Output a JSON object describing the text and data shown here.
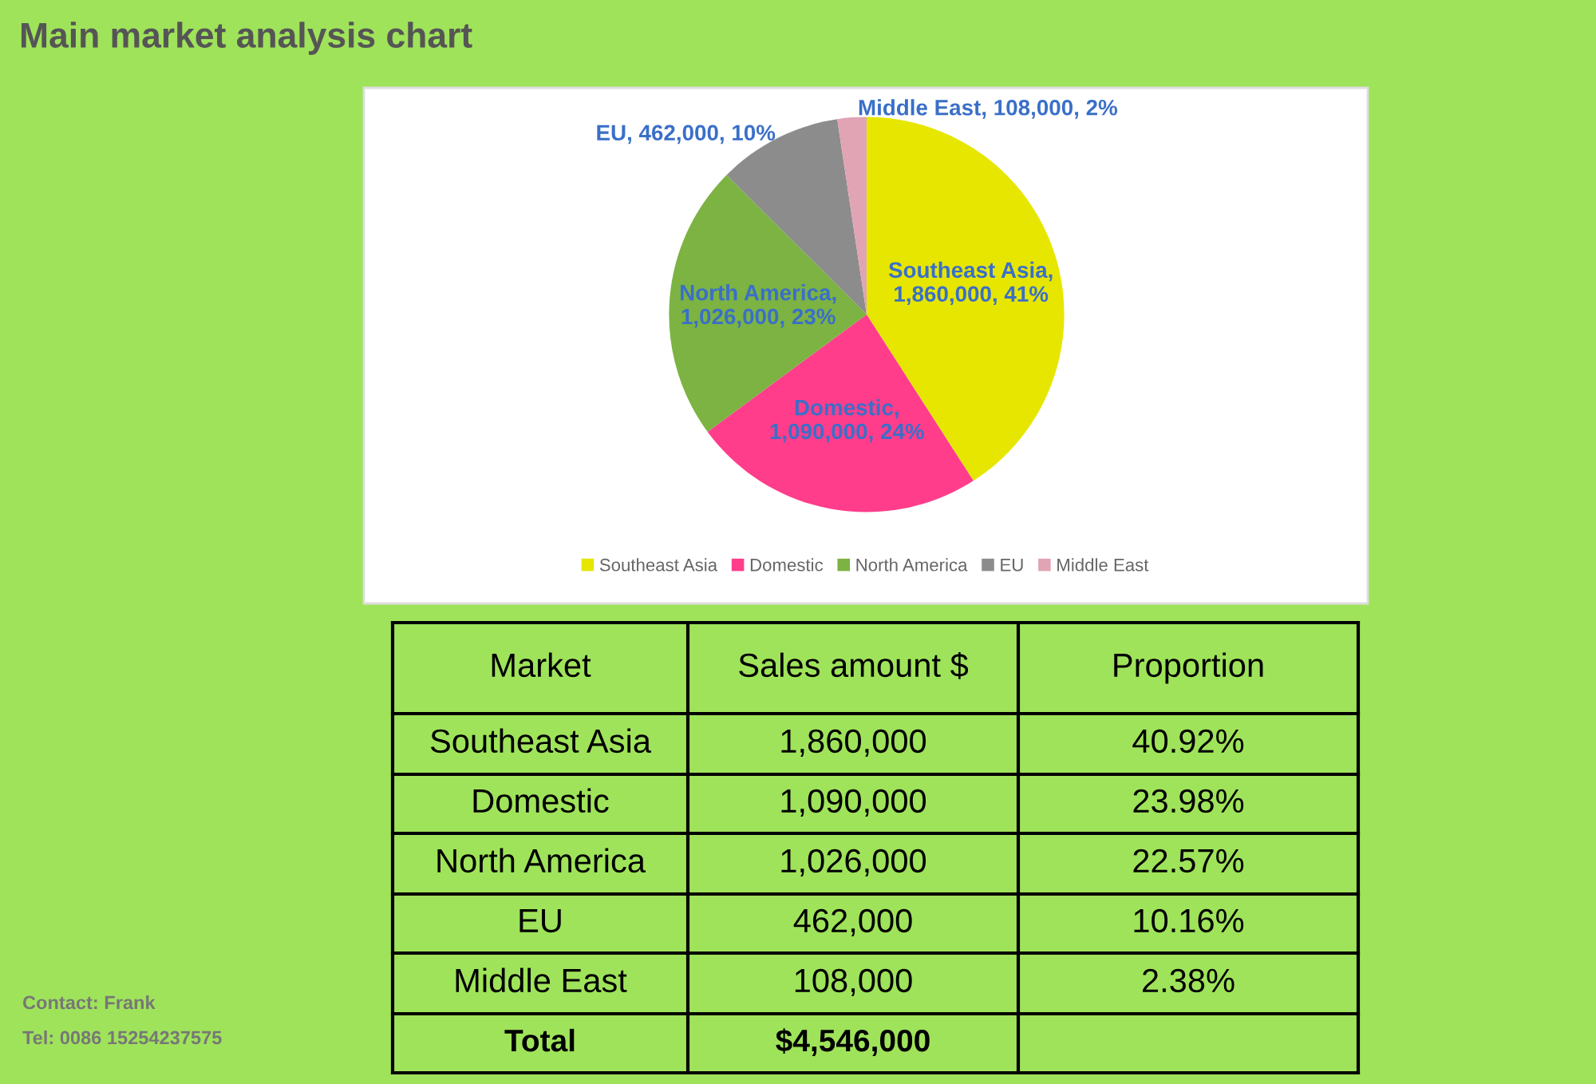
{
  "chart_data": {
    "type": "pie",
    "title": "Main market analysis chart",
    "categories": [
      "Southeast Asia",
      "Domestic",
      "North America",
      "EU",
      "Middle East"
    ],
    "values": [
      1860000,
      1090000,
      1026000,
      462000,
      108000
    ],
    "colors": [
      "#e6e600",
      "#ff3d8b",
      "#7cb342",
      "#8c8c8c",
      "#e0a4b4"
    ],
    "value_labels": [
      "Southeast Asia, 1,860,000, 41%",
      "Domestic, 1,090,000, 24%",
      "North America, 1,026,000, 23%",
      "EU, 462,000, 10%",
      "Middle East, 108,000, 2%"
    ],
    "data_labels": true,
    "legend": "bottom",
    "totals": [
      "$4,546,000"
    ],
    "annotations": [
      "Market",
      "Sales amount $",
      "Proportion",
      "1,860,000",
      "1,090,000",
      "1,026,000",
      "462,000",
      "108,000",
      "40.92%",
      "23.98%",
      "22.57%",
      "10.16%",
      "2.38%",
      "Total",
      "Contact: Frank",
      "Tel: 0086 15254237575"
    ]
  }
}
